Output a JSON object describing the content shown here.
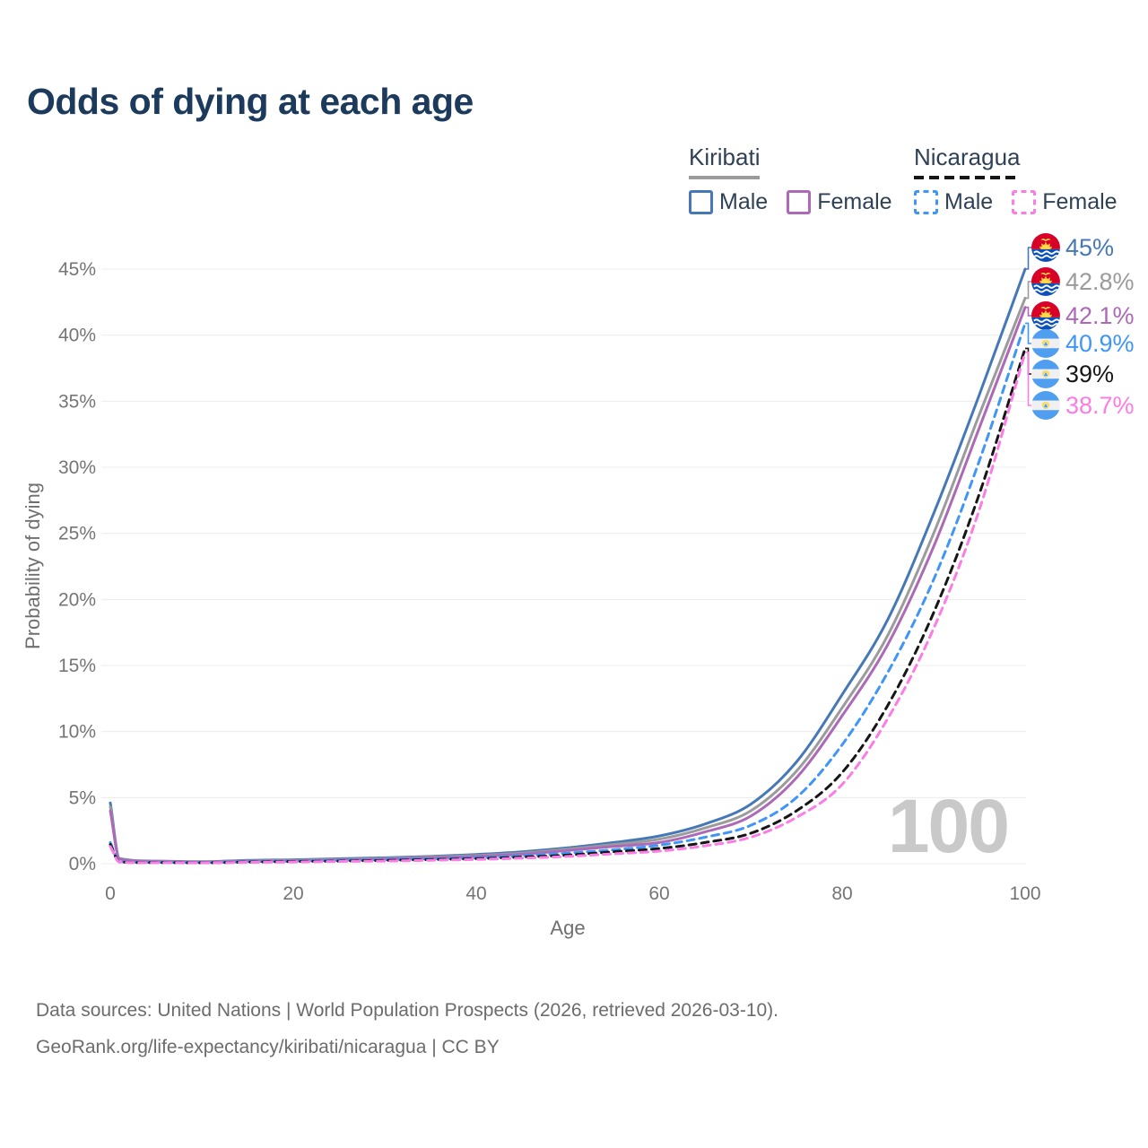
{
  "title": "Odds of dying at each age",
  "watermark_age": "100",
  "legend": {
    "groups": [
      {
        "name": "Kiribati",
        "line_style": "solid",
        "line_color": "#9b9b9b",
        "items": [
          {
            "label": "Male",
            "color": "#4678b8"
          },
          {
            "label": "Female",
            "color": "#ad68b8"
          }
        ]
      },
      {
        "name": "Nicaragua",
        "line_style": "dashed",
        "line_color": "#161616",
        "items": [
          {
            "label": "Male",
            "color": "#3f96f7"
          },
          {
            "label": "Female",
            "color": "#fb7ce4"
          }
        ]
      }
    ]
  },
  "footer": {
    "line1": "Data sources: United Nations | World Population Prospects (2026, retrieved 2026-03-10).",
    "line2": "GeoRank.org/life-expectancy/kiribati/nicaragua | CC BY"
  },
  "chart_data": {
    "type": "line",
    "title": "Odds of dying at each age",
    "xlabel": "Age",
    "ylabel": "Probability of dying",
    "xlim": [
      0,
      100
    ],
    "ylim": [
      0,
      45
    ],
    "x_ticks": [
      0,
      20,
      40,
      60,
      80,
      100
    ],
    "y_tick_labels": [
      "0%",
      "5%",
      "10%",
      "15%",
      "20%",
      "25%",
      "30%",
      "35%",
      "40%",
      "45%"
    ],
    "grid": "horizontal",
    "legend_position": "top-right",
    "ages": [
      0,
      1,
      5,
      10,
      15,
      20,
      25,
      30,
      35,
      40,
      45,
      50,
      55,
      60,
      65,
      70,
      75,
      80,
      85,
      90,
      95,
      100
    ],
    "series": [
      {
        "name": "Kiribati Male",
        "country": "Kiribati",
        "sex": "male",
        "style": "solid",
        "color": "#4678b8",
        "flag": "kiribati",
        "end_label": "45%",
        "values": [
          4.6,
          0.4,
          0.2,
          0.15,
          0.25,
          0.3,
          0.37,
          0.45,
          0.55,
          0.7,
          0.9,
          1.2,
          1.6,
          2.1,
          3.0,
          4.5,
          7.7,
          12.8,
          18.5,
          26.5,
          35.5,
          45
        ]
      },
      {
        "name": "Kiribati",
        "country": "Kiribati",
        "sex": "combined",
        "style": "solid",
        "color": "#9b9b9b",
        "flag": "kiribati",
        "end_label": "42.8%",
        "values": [
          4.3,
          0.38,
          0.18,
          0.13,
          0.21,
          0.26,
          0.32,
          0.4,
          0.5,
          0.62,
          0.8,
          1.1,
          1.45,
          1.85,
          2.7,
          4.0,
          7.0,
          11.8,
          17.3,
          25.0,
          34.0,
          42.8
        ]
      },
      {
        "name": "Kiribati Female",
        "country": "Kiribati",
        "sex": "female",
        "style": "solid",
        "color": "#ad68b8",
        "flag": "kiribati",
        "end_label": "42.1%",
        "values": [
          4.0,
          0.35,
          0.16,
          0.12,
          0.18,
          0.22,
          0.28,
          0.35,
          0.44,
          0.55,
          0.72,
          1.0,
          1.3,
          1.6,
          2.4,
          3.6,
          6.5,
          11.2,
          16.6,
          24.0,
          33.0,
          42.1
        ]
      },
      {
        "name": "Nicaragua Male",
        "country": "Nicaragua",
        "sex": "male",
        "style": "dashed",
        "color": "#3f96f7",
        "flag": "nicaragua",
        "end_label": "40.9%",
        "values": [
          1.6,
          0.15,
          0.1,
          0.08,
          0.15,
          0.2,
          0.25,
          0.3,
          0.37,
          0.45,
          0.6,
          0.8,
          1.05,
          1.4,
          2.0,
          2.9,
          5.0,
          9.0,
          14.5,
          21.5,
          30.5,
          40.9
        ]
      },
      {
        "name": "Nicaragua",
        "country": "Nicaragua",
        "sex": "combined",
        "style": "dashed",
        "color": "#161616",
        "flag": "nicaragua",
        "end_label": "39%",
        "values": [
          1.45,
          0.13,
          0.08,
          0.07,
          0.12,
          0.16,
          0.2,
          0.25,
          0.31,
          0.38,
          0.5,
          0.65,
          0.9,
          1.15,
          1.6,
          2.3,
          4.0,
          6.9,
          12.0,
          19.0,
          28.0,
          39.0
        ]
      },
      {
        "name": "Nicaragua Female",
        "country": "Nicaragua",
        "sex": "female",
        "style": "dashed",
        "color": "#fb7ce4",
        "flag": "nicaragua",
        "end_label": "38.7%",
        "values": [
          1.3,
          0.12,
          0.07,
          0.06,
          0.1,
          0.13,
          0.17,
          0.2,
          0.26,
          0.32,
          0.42,
          0.55,
          0.75,
          0.95,
          1.35,
          2.0,
          3.5,
          6.0,
          11.0,
          17.8,
          26.8,
          38.7
        ]
      }
    ]
  }
}
